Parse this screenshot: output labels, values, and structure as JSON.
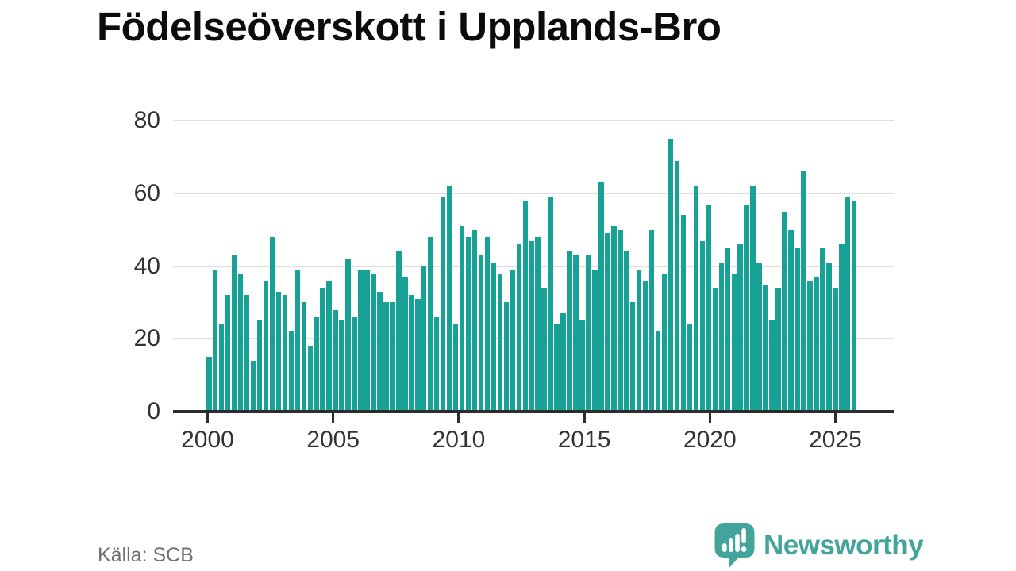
{
  "title": "Födelseöverskott i Upplands-Bro",
  "source": "Källa: SCB",
  "brand": {
    "name": "Newsworthy",
    "color": "#43a49c"
  },
  "colors": {
    "bar": "#17a295",
    "grid": "#dedede",
    "axis": "#2d2d2d",
    "tick_text": "#333333",
    "title_text": "#0c0c0c",
    "source_text": "#6f6f6f"
  },
  "chart_data": {
    "type": "bar",
    "title": "Födelseöverskott i Upplands-Bro",
    "xlabel": "",
    "ylabel": "",
    "frequency": "quarterly",
    "start_period": "2000-Q1",
    "end_period": "2025-Q3",
    "y_ticks": [
      0,
      20,
      40,
      60,
      80
    ],
    "ylim": [
      0,
      84
    ],
    "x_tick_labels": [
      "2000",
      "2005",
      "2010",
      "2015",
      "2020",
      "2025"
    ],
    "grid": "horizontal",
    "legend": "none",
    "series": [
      {
        "name": "Födelseöverskott",
        "values": [
          15,
          39,
          24,
          32,
          43,
          38,
          32,
          14,
          25,
          36,
          48,
          33,
          32,
          22,
          39,
          30,
          18,
          26,
          34,
          36,
          28,
          25,
          42,
          26,
          39,
          39,
          38,
          33,
          30,
          30,
          44,
          37,
          32,
          31,
          40,
          48,
          26,
          59,
          62,
          24,
          51,
          48,
          50,
          43,
          48,
          41,
          38,
          30,
          39,
          46,
          58,
          47,
          48,
          34,
          59,
          24,
          27,
          44,
          43,
          25,
          43,
          39,
          63,
          49,
          51,
          50,
          44,
          30,
          39,
          36,
          50,
          22,
          38,
          75,
          69,
          54,
          24,
          62,
          47,
          57,
          34,
          41,
          45,
          38,
          46,
          57,
          62,
          41,
          35,
          25,
          34,
          55,
          50,
          45,
          66,
          36,
          37,
          45,
          41,
          34,
          46,
          59,
          58
        ]
      }
    ]
  }
}
